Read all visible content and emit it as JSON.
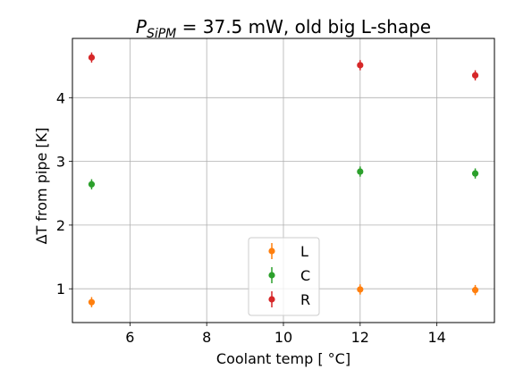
{
  "chart_data": {
    "type": "scatter",
    "title_main": "P",
    "title_sub": "SiPM",
    "title_rest": " = 37.5 mW, old big L-shape",
    "xlabel": "Coolant temp [$^\\circ$C]",
    "xlabel_display": "Coolant temp [ °C]",
    "ylabel_display": "ΔT from pipe [K]",
    "xlim": [
      4.5,
      15.5
    ],
    "ylim": [
      0.47,
      4.93
    ],
    "xticks": [
      6,
      8,
      10,
      12,
      14
    ],
    "yticks": [
      1,
      2,
      3,
      4
    ],
    "grid": true,
    "legend_position": "lower center",
    "series": [
      {
        "name": "L",
        "color": "#ff7f0e",
        "x": [
          5,
          12,
          15
        ],
        "y": [
          0.79,
          0.99,
          0.98
        ],
        "yerr": [
          0.08,
          0.08,
          0.08
        ]
      },
      {
        "name": "C",
        "color": "#2ca02c",
        "x": [
          5,
          12,
          15
        ],
        "y": [
          2.64,
          2.84,
          2.81
        ],
        "yerr": [
          0.08,
          0.08,
          0.08
        ]
      },
      {
        "name": "R",
        "color": "#d62728",
        "x": [
          5,
          12,
          15
        ],
        "y": [
          4.63,
          4.51,
          4.35
        ],
        "yerr": [
          0.08,
          0.08,
          0.08
        ]
      }
    ]
  }
}
